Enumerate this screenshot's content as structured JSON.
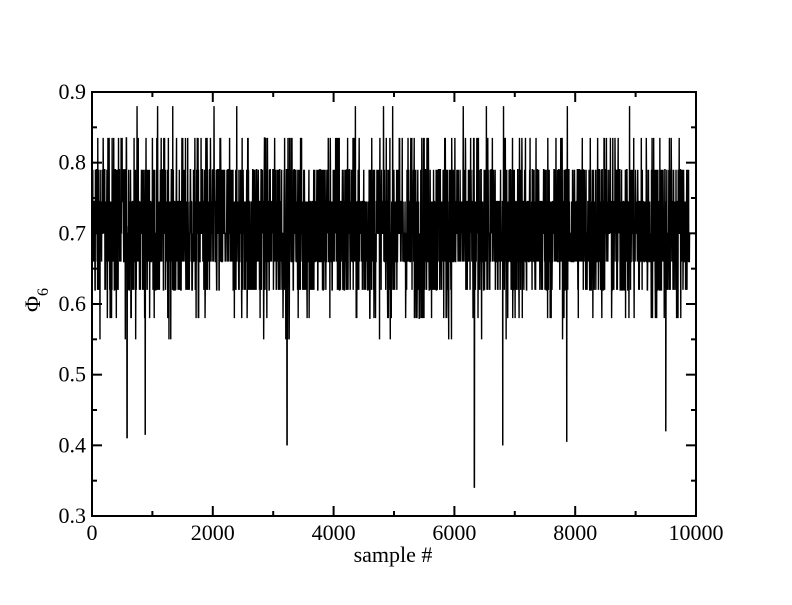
{
  "chart_data": {
    "type": "line",
    "xlabel": "sample #",
    "ylabel": "Φ",
    "ylabel_subscript": "6",
    "xlim": [
      0,
      10000
    ],
    "ylim": [
      0.3,
      0.9
    ],
    "grid": false,
    "x_ticks": [
      0,
      2000,
      4000,
      6000,
      8000,
      10000
    ],
    "x_tick_labels": [
      "0",
      "2000",
      "4000",
      "6000",
      "8000",
      "10000"
    ],
    "y_ticks": [
      0.3,
      0.4,
      0.5,
      0.6,
      0.7,
      0.8,
      0.9
    ],
    "y_tick_labels": [
      "0.3",
      "0.4",
      "0.5",
      "0.6",
      "0.7",
      "0.8",
      "0.9"
    ],
    "series": [
      {
        "color": "#000000",
        "x_start": 0,
        "x_end": 9900,
        "typical_range": [
          0.55,
          0.84
        ],
        "mean": 0.71,
        "discrete_levels": [
          0.34,
          0.4,
          0.42,
          0.44,
          0.46,
          0.48,
          0.5,
          0.52,
          0.55,
          0.58,
          0.62,
          0.66,
          0.7,
          0.745,
          0.79,
          0.835,
          0.88
        ],
        "notable_points": [
          {
            "x": 580,
            "y": 0.41
          },
          {
            "x": 880,
            "y": 0.415
          },
          {
            "x": 3230,
            "y": 0.4
          },
          {
            "x": 6330,
            "y": 0.34
          },
          {
            "x": 6800,
            "y": 0.4
          },
          {
            "x": 7860,
            "y": 0.405
          },
          {
            "x": 9500,
            "y": 0.42
          }
        ]
      }
    ]
  }
}
